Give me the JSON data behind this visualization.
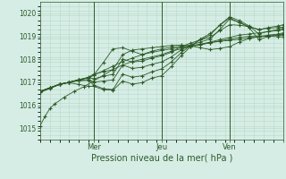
{
  "title": "Pression niveau de la mer( hPa )",
  "xlim": [
    0,
    100
  ],
  "ylim": [
    1014.5,
    1020.5
  ],
  "yticks": [
    1015,
    1016,
    1017,
    1018,
    1019,
    1020
  ],
  "xtick_positions": [
    22,
    50,
    78,
    100
  ],
  "xtick_labels": [
    "Mer",
    "Jeu",
    "Ven",
    ""
  ],
  "vlines": [
    22,
    50,
    78
  ],
  "bg_color": "#d6ede6",
  "grid_color": "#b8d8c8",
  "line_color": "#2d5a27",
  "series": [
    [
      0,
      1015.1,
      2,
      1015.5,
      4,
      1015.85,
      6,
      1016.05,
      10,
      1016.35,
      14,
      1016.6,
      18,
      1016.8,
      22,
      1017.05,
      26,
      1017.3,
      30,
      1017.55,
      34,
      1017.75,
      38,
      1017.9,
      42,
      1018.0,
      46,
      1018.1,
      50,
      1018.2,
      54,
      1018.35,
      58,
      1018.45,
      62,
      1018.55,
      66,
      1018.65,
      70,
      1018.75,
      74,
      1018.85,
      78,
      1018.95,
      82,
      1019.05,
      86,
      1019.1,
      90,
      1019.15,
      94,
      1019.2,
      98,
      1019.25,
      100,
      1019.3
    ],
    [
      0,
      1016.6,
      4,
      1016.75,
      8,
      1016.9,
      12,
      1017.0,
      16,
      1017.1,
      20,
      1017.2,
      22,
      1017.3,
      26,
      1017.5,
      30,
      1017.7,
      34,
      1017.9,
      38,
      1018.05,
      42,
      1018.2,
      46,
      1018.35,
      50,
      1018.45,
      54,
      1018.52,
      58,
      1018.57,
      62,
      1018.6,
      66,
      1018.65,
      70,
      1018.72,
      74,
      1018.78,
      78,
      1018.82,
      82,
      1018.87,
      86,
      1018.93,
      90,
      1018.98,
      94,
      1019.05,
      98,
      1019.1,
      100,
      1019.15
    ],
    [
      0,
      1016.6,
      4,
      1016.75,
      8,
      1016.9,
      12,
      1017.0,
      16,
      1017.1,
      20,
      1017.2,
      22,
      1017.3,
      26,
      1017.85,
      30,
      1018.45,
      34,
      1018.5,
      38,
      1018.35,
      42,
      1018.2,
      46,
      1018.3,
      50,
      1018.38,
      54,
      1018.45,
      58,
      1018.52,
      62,
      1018.57,
      66,
      1018.62,
      70,
      1018.72,
      74,
      1018.8,
      78,
      1018.87,
      82,
      1018.95,
      86,
      1019.0,
      90,
      1019.02,
      94,
      1019.0,
      98,
      1018.98,
      100,
      1018.97
    ],
    [
      0,
      1016.6,
      4,
      1016.75,
      8,
      1016.9,
      12,
      1017.0,
      16,
      1017.1,
      20,
      1017.22,
      22,
      1017.35,
      26,
      1017.45,
      30,
      1017.55,
      34,
      1018.2,
      38,
      1018.4,
      42,
      1018.45,
      46,
      1018.5,
      50,
      1018.55,
      54,
      1018.6,
      58,
      1018.62,
      62,
      1018.58,
      66,
      1018.5,
      70,
      1018.42,
      74,
      1018.47,
      78,
      1018.55,
      82,
      1018.75,
      86,
      1018.9,
      90,
      1018.98,
      94,
      1019.02,
      98,
      1019.04,
      100,
      1019.05
    ],
    [
      0,
      1016.6,
      4,
      1016.75,
      8,
      1016.9,
      12,
      1017.0,
      16,
      1017.12,
      20,
      1017.2,
      22,
      1017.15,
      26,
      1017.25,
      30,
      1017.35,
      34,
      1018.0,
      38,
      1017.88,
      42,
      1017.92,
      46,
      1018.05,
      50,
      1018.15,
      54,
      1018.3,
      58,
      1018.55,
      62,
      1018.7,
      66,
      1018.85,
      70,
      1018.95,
      74,
      1019.25,
      78,
      1019.5,
      82,
      1019.48,
      86,
      1019.42,
      90,
      1019.3,
      94,
      1019.35,
      98,
      1019.38,
      100,
      1019.4
    ],
    [
      0,
      1016.6,
      4,
      1016.75,
      8,
      1016.92,
      12,
      1017.0,
      16,
      1017.08,
      20,
      1017.12,
      22,
      1017.0,
      26,
      1017.05,
      30,
      1017.1,
      34,
      1017.75,
      38,
      1017.6,
      42,
      1017.65,
      46,
      1017.78,
      50,
      1017.88,
      54,
      1018.1,
      58,
      1018.4,
      62,
      1018.62,
      66,
      1018.75,
      70,
      1018.88,
      74,
      1019.3,
      78,
      1019.75,
      82,
      1019.6,
      86,
      1019.42,
      90,
      1019.28,
      94,
      1019.38,
      98,
      1019.45,
      100,
      1019.5
    ],
    [
      0,
      1016.6,
      4,
      1016.75,
      8,
      1016.92,
      12,
      1017.0,
      16,
      1017.06,
      20,
      1017.08,
      22,
      1016.88,
      26,
      1016.72,
      30,
      1016.68,
      34,
      1017.35,
      38,
      1017.22,
      42,
      1017.28,
      46,
      1017.45,
      50,
      1017.58,
      54,
      1017.88,
      58,
      1018.28,
      62,
      1018.6,
      66,
      1018.85,
      70,
      1019.05,
      74,
      1019.5,
      78,
      1019.85,
      82,
      1019.68,
      86,
      1019.45,
      90,
      1019.1,
      94,
      1019.22,
      98,
      1019.3,
      100,
      1019.35
    ],
    [
      0,
      1016.55,
      4,
      1016.72,
      8,
      1016.9,
      12,
      1016.98,
      16,
      1016.9,
      20,
      1016.82,
      22,
      1016.82,
      26,
      1016.68,
      30,
      1016.65,
      34,
      1017.05,
      38,
      1016.92,
      42,
      1016.98,
      46,
      1017.18,
      50,
      1017.28,
      54,
      1017.68,
      58,
      1018.15,
      62,
      1018.55,
      66,
      1018.88,
      70,
      1019.12,
      74,
      1019.48,
      78,
      1019.8,
      82,
      1019.6,
      86,
      1019.38,
      90,
      1018.85,
      94,
      1019.0,
      98,
      1019.05,
      100,
      1019.1
    ]
  ]
}
